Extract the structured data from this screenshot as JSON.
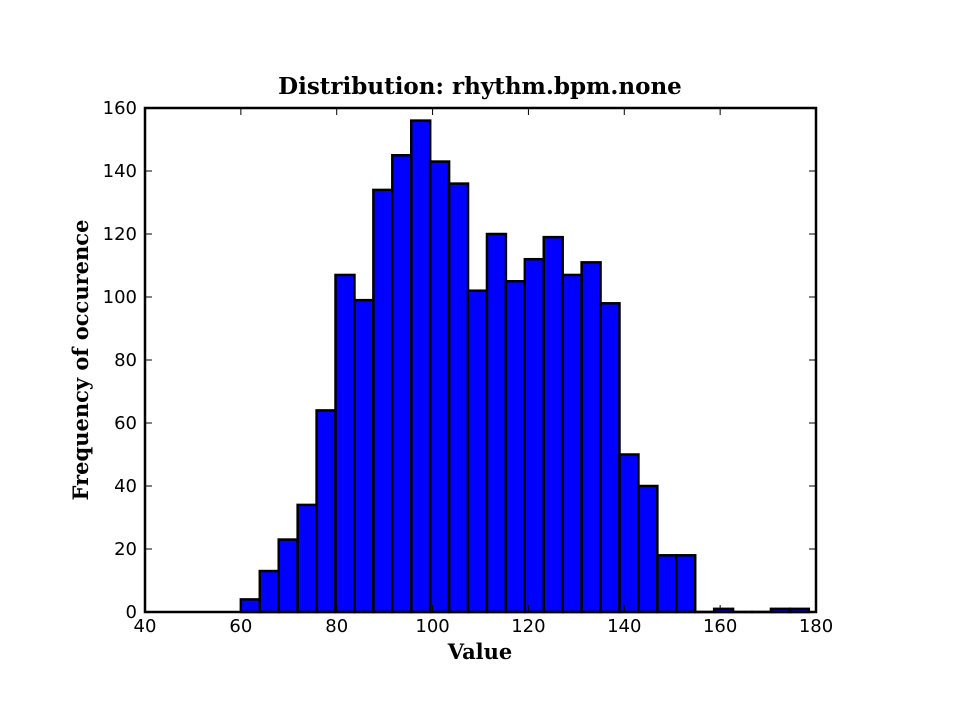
{
  "chart_data": {
    "type": "bar",
    "title": "Distribution: rhythm.bpm.none",
    "xlabel": "Value",
    "ylabel": "Frequency of occurence",
    "xlim": [
      40,
      180
    ],
    "ylim": [
      0,
      160
    ],
    "xticks": [
      40,
      60,
      80,
      100,
      120,
      140,
      160,
      180
    ],
    "yticks": [
      0,
      20,
      40,
      60,
      80,
      100,
      120,
      140,
      160
    ],
    "bin_width": 3.95,
    "bins": [
      {
        "x0": 60.0,
        "value": 4
      },
      {
        "x0": 63.95,
        "value": 13
      },
      {
        "x0": 67.9,
        "value": 23
      },
      {
        "x0": 71.85,
        "value": 34
      },
      {
        "x0": 75.8,
        "value": 64
      },
      {
        "x0": 79.75,
        "value": 107
      },
      {
        "x0": 83.7,
        "value": 99
      },
      {
        "x0": 87.65,
        "value": 134
      },
      {
        "x0": 91.6,
        "value": 145
      },
      {
        "x0": 95.55,
        "value": 156
      },
      {
        "x0": 99.5,
        "value": 143
      },
      {
        "x0": 103.45,
        "value": 136
      },
      {
        "x0": 107.4,
        "value": 102
      },
      {
        "x0": 111.35,
        "value": 120
      },
      {
        "x0": 115.3,
        "value": 105
      },
      {
        "x0": 119.25,
        "value": 112
      },
      {
        "x0": 123.2,
        "value": 119
      },
      {
        "x0": 127.15,
        "value": 107
      },
      {
        "x0": 131.1,
        "value": 111
      },
      {
        "x0": 135.05,
        "value": 98
      },
      {
        "x0": 139.0,
        "value": 50
      },
      {
        "x0": 142.95,
        "value": 40
      },
      {
        "x0": 146.9,
        "value": 18
      },
      {
        "x0": 150.85,
        "value": 18
      },
      {
        "x0": 154.8,
        "value": 0
      },
      {
        "x0": 158.75,
        "value": 1
      },
      {
        "x0": 162.7,
        "value": 0
      },
      {
        "x0": 166.65,
        "value": 0
      },
      {
        "x0": 170.6,
        "value": 1
      },
      {
        "x0": 174.55,
        "value": 1
      }
    ],
    "bar_color": "#0000ff",
    "edge_color": "#000000",
    "grid": false,
    "legend": "none"
  }
}
